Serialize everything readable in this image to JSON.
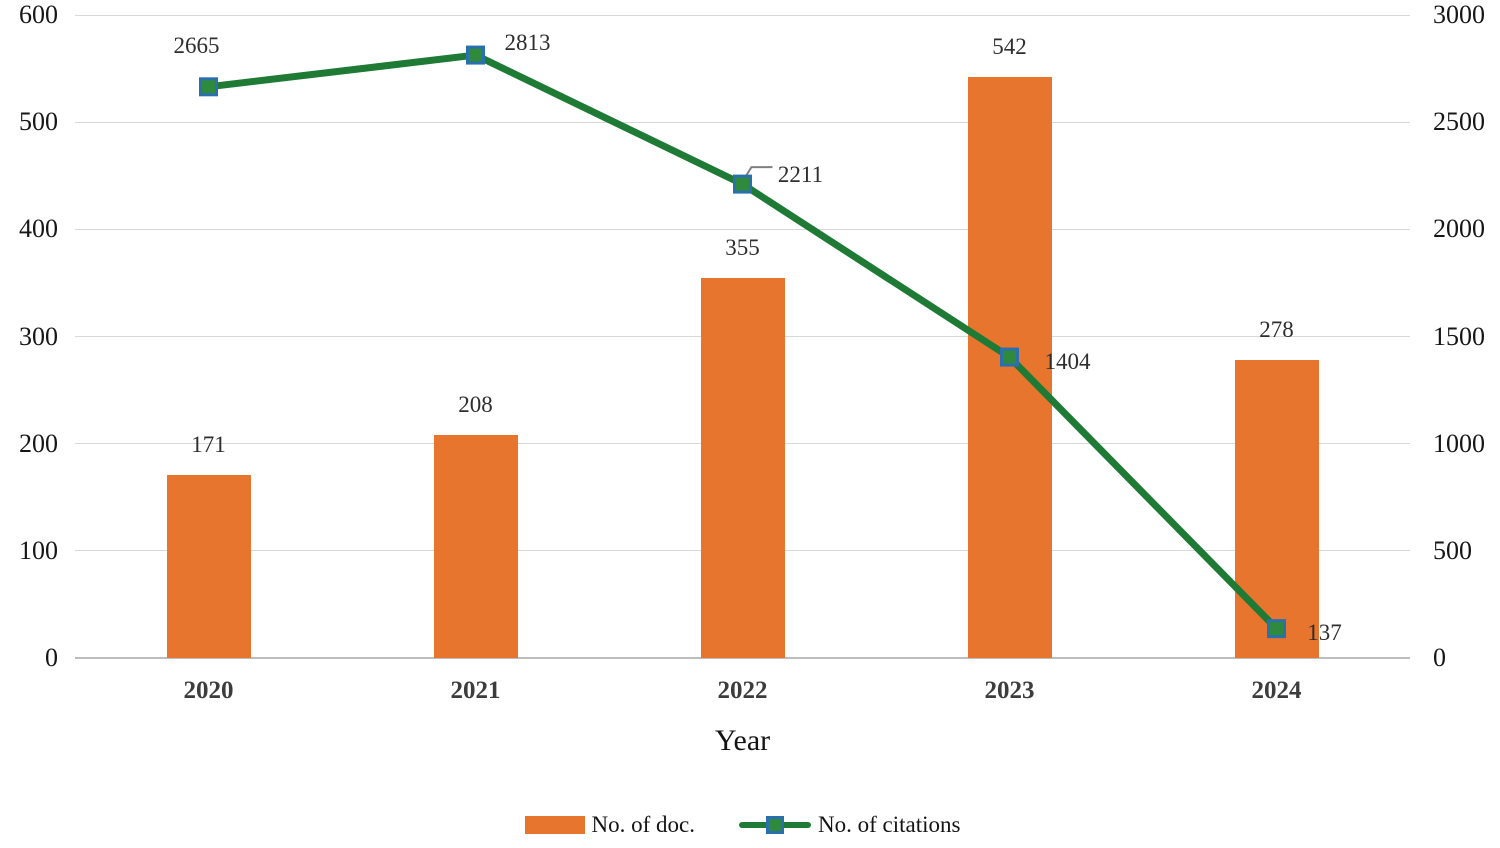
{
  "chart_data": {
    "type": "combo-bar-line",
    "title": "",
    "categories": [
      "2020",
      "2021",
      "2022",
      "2023",
      "2024"
    ],
    "xlabel": "Year",
    "grid": true,
    "legend_position": "bottom",
    "left_axis": {
      "min": 0,
      "max": 600,
      "ticks": [
        "600",
        "500",
        "400",
        "300",
        "200",
        "100",
        "0"
      ]
    },
    "right_axis": {
      "min": 0,
      "max": 3000,
      "ticks": [
        "3000",
        "2500",
        "2000",
        "1500",
        "1000",
        "500",
        "0"
      ]
    },
    "series": [
      {
        "name": "No. of doc.",
        "type": "bar",
        "axis": "left",
        "color": "#E8752D",
        "values": [
          171,
          208,
          355,
          542,
          278
        ]
      },
      {
        "name": "No. of citations",
        "type": "line",
        "axis": "right",
        "color": "#1E7A35",
        "marker_fill": "#2F8A3D",
        "marker_border": "#2A6FAE",
        "values": [
          2665,
          2813,
          2211,
          1404,
          137
        ],
        "label_offsets": [
          {
            "dx": -12,
            "dy": -41
          },
          {
            "dx": 52,
            "dy": -12
          },
          {
            "dx": 58,
            "dy": -9,
            "leader": true
          },
          {
            "dx": 58,
            "dy": 5
          },
          {
            "dx": 48,
            "dy": 4
          }
        ]
      }
    ],
    "colors": {
      "gridline": "#D8D8D8",
      "axis_line": "#BDBDBD",
      "tick_text": "#161616",
      "category_text": "#3C3C3C",
      "data_label_text": "#2E2E2E",
      "leader_line": "#808080"
    }
  }
}
